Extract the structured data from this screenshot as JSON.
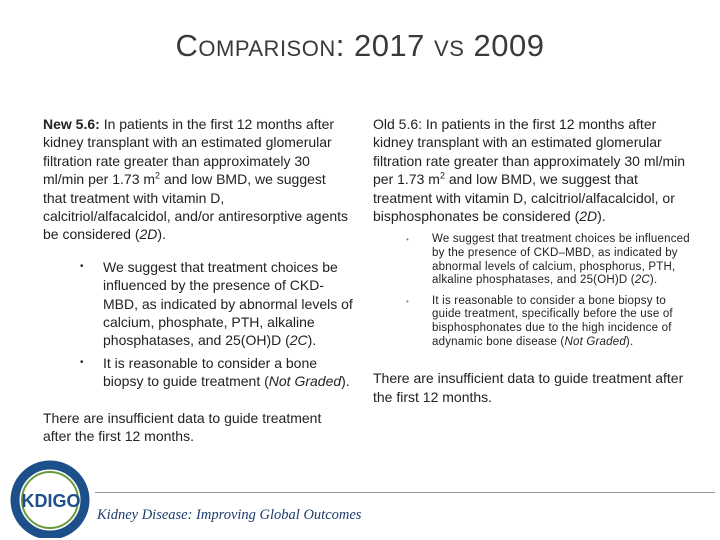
{
  "title": "Comparison: 2017 vs 2009",
  "left": {
    "intro": [
      {
        "t": "New 5.6:",
        "f": "b"
      },
      {
        "t": " In patients in the first 12 months after kidney transplant with an estimated glomerular filtration rate greater than approximately 30 ml/min per 1.73 m"
      },
      {
        "t": "2",
        "f": "sup"
      },
      {
        "t": " and low BMD, we suggest that treatment with vitamin D, calcitriol/alfacalcidol, and/or antiresorptive agents be considered ("
      },
      {
        "t": "2D",
        "f": "i"
      },
      {
        "t": ")."
      }
    ],
    "bullets": [
      [
        {
          "t": "We suggest that treatment choices be influenced by the presence of CKD-MBD, as indicated by abnormal levels of calcium, phosphate, PTH, alkaline phosphatases, and 25(OH)D ("
        },
        {
          "t": "2C",
          "f": "i"
        },
        {
          "t": ")."
        }
      ],
      [
        {
          "t": "It is reasonable to consider a bone biopsy to guide treatment ("
        },
        {
          "t": "Not Graded",
          "f": "i"
        },
        {
          "t": ")."
        }
      ]
    ],
    "footer": "There are insufficient data to guide treatment after the first 12 months."
  },
  "right": {
    "intro": [
      {
        "t": "Old 5.6:"
      },
      {
        "t": " In patients in the first 12 months after kidney transplant with an estimated glomerular filtration rate greater than approximately 30 ml/min per 1.73 m"
      },
      {
        "t": "2",
        "f": "sup"
      },
      {
        "t": " and low BMD, we suggest that treatment with vitamin D, calcitriol/alfacalcidol, or bisphosphonates be considered ("
      },
      {
        "t": "2D",
        "f": "i"
      },
      {
        "t": ")."
      }
    ],
    "bullets": [
      [
        {
          "t": "We suggest that treatment choices be influenced by the presence of CKD–MBD, as indicated by abnormal levels of calcium, phosphorus, PTH, alkaline phosphatases, and 25(OH)D ("
        },
        {
          "t": "2C",
          "f": "i"
        },
        {
          "t": ")."
        }
      ],
      [
        {
          "t": "It is reasonable to consider a bone biopsy to guide treatment, specifically before the use of bisphosphonates due to the high incidence of adynamic bone disease ("
        },
        {
          "t": "Not Graded",
          "f": "i"
        },
        {
          "t": ")."
        }
      ]
    ],
    "footer": "There are insufficient data to guide treatment after the first 12 months."
  },
  "logo": "KDIGO",
  "tagline": "Kidney Disease: Improving Global Outcomes"
}
